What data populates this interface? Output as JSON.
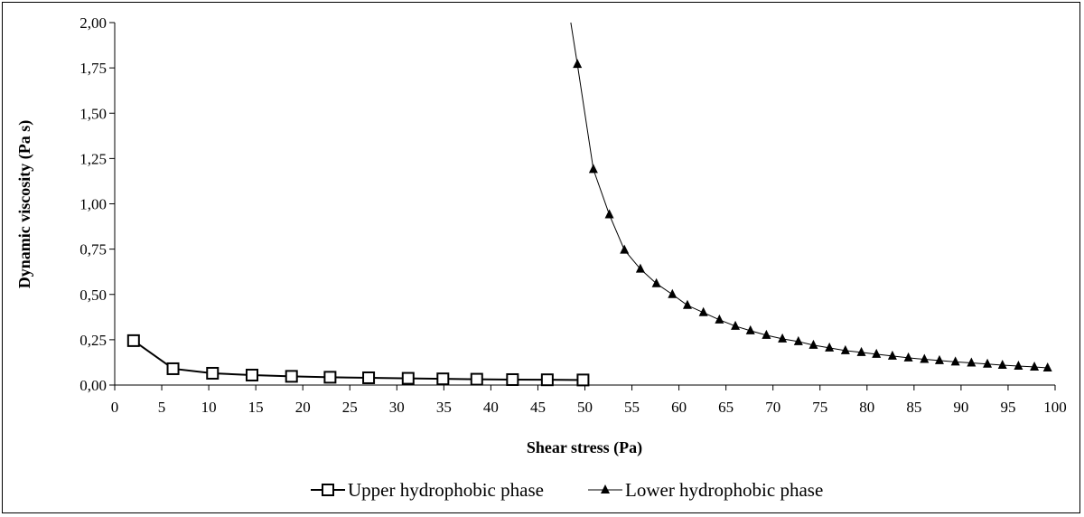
{
  "chart_data": {
    "type": "line",
    "title": "",
    "xlabel": "Shear stress (Pa)",
    "ylabel": "Dynamic viscosity (Pa s)",
    "xlim": [
      0,
      100
    ],
    "ylim": [
      0,
      2
    ],
    "x_ticks": [
      "0",
      "5",
      "10",
      "15",
      "20",
      "25",
      "30",
      "35",
      "40",
      "45",
      "50",
      "55",
      "60",
      "65",
      "70",
      "75",
      "80",
      "85",
      "90",
      "95",
      "100"
    ],
    "y_ticks": [
      "0,00",
      "0,25",
      "0,50",
      "0,75",
      "1,00",
      "1,25",
      "1,50",
      "1,75",
      "2,00"
    ],
    "grid": false,
    "legend_position": "bottom",
    "series": [
      {
        "name": "Upper hydrophobic phase",
        "marker": "open-square",
        "color": "#000000",
        "x": [
          2.0,
          6.2,
          10.4,
          14.6,
          18.8,
          22.9,
          27.0,
          31.2,
          34.9,
          38.5,
          42.3,
          46.0,
          49.8
        ],
        "y": [
          0.245,
          0.09,
          0.065,
          0.055,
          0.048,
          0.043,
          0.04,
          0.037,
          0.034,
          0.032,
          0.03,
          0.029,
          0.028
        ]
      },
      {
        "name": "Lower hydrophobic phase",
        "marker": "filled-triangle",
        "color": "#000000",
        "x": [
          49.2,
          50.9,
          52.6,
          54.2,
          55.9,
          57.6,
          59.3,
          60.9,
          62.6,
          64.3,
          66.0,
          67.6,
          69.3,
          71.0,
          72.7,
          74.3,
          76.0,
          77.7,
          79.4,
          81.0,
          82.7,
          84.4,
          86.1,
          87.7,
          89.4,
          91.1,
          92.8,
          94.4,
          96.1,
          97.8,
          99.2
        ],
        "y": [
          1.77,
          1.19,
          0.94,
          0.745,
          0.64,
          0.56,
          0.5,
          0.44,
          0.4,
          0.36,
          0.325,
          0.3,
          0.275,
          0.255,
          0.24,
          0.22,
          0.205,
          0.19,
          0.18,
          0.17,
          0.16,
          0.15,
          0.142,
          0.135,
          0.128,
          0.122,
          0.116,
          0.11,
          0.105,
          0.1,
          0.095
        ]
      }
    ]
  }
}
